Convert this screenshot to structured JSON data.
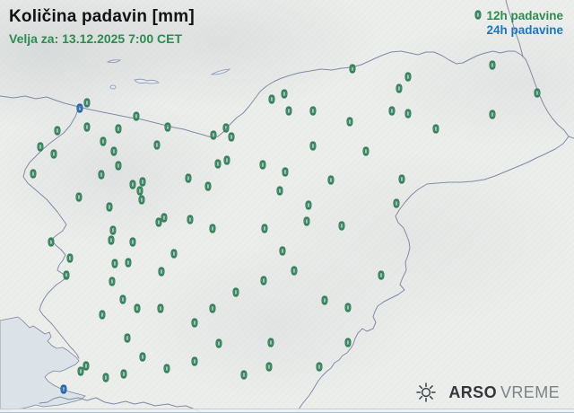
{
  "header": {
    "title": "Količina padavin [mm]",
    "valid": "Velja za: 13.12.2025 7:00 CET"
  },
  "legend": {
    "sample_value": "0",
    "items": [
      {
        "label": "12h padavine",
        "color": "#2e8b50"
      },
      {
        "label": "24h padavine",
        "color": "#1b76c0"
      }
    ]
  },
  "branding": {
    "name_bold": "ARSO",
    "name_regular": "VREME",
    "icon": "sun-icon"
  },
  "map": {
    "region": "Slovenija",
    "station_value": "0",
    "colors": {
      "marker_12h": "#2f7d58",
      "marker_24h": "#1f5fa6",
      "legend_12h": "#2e8b50",
      "legend_24h": "#1b76c0",
      "land": "#eceeec",
      "sea": "#dbe3e8",
      "border": "#7b86a0"
    },
    "stations_12h": [
      [
        97,
        115
      ],
      [
        152,
        130
      ],
      [
        187,
        142
      ],
      [
        64,
        146
      ],
      [
        97,
        142
      ],
      [
        132,
        144
      ],
      [
        115,
        158
      ],
      [
        45,
        164
      ],
      [
        127,
        169
      ],
      [
        60,
        172
      ],
      [
        238,
        151
      ],
      [
        252,
        143
      ],
      [
        258,
        153
      ],
      [
        303,
        111
      ],
      [
        317,
        105
      ],
      [
        322,
        124
      ],
      [
        175,
        162
      ],
      [
        37,
        194
      ],
      [
        113,
        195
      ],
      [
        132,
        185
      ],
      [
        210,
        199
      ],
      [
        243,
        183
      ],
      [
        253,
        179
      ],
      [
        293,
        184
      ],
      [
        318,
        192
      ],
      [
        312,
        213
      ],
      [
        232,
        208
      ],
      [
        148,
        206
      ],
      [
        159,
        203
      ],
      [
        156,
        213
      ],
      [
        158,
        223
      ],
      [
        88,
        220
      ],
      [
        122,
        231
      ],
      [
        177,
        248
      ],
      [
        183,
        243
      ],
      [
        212,
        245
      ],
      [
        126,
        257
      ],
      [
        237,
        255
      ],
      [
        295,
        255
      ],
      [
        393,
        77
      ],
      [
        549,
        73
      ],
      [
        455,
        86
      ],
      [
        445,
        99
      ],
      [
        599,
        104
      ],
      [
        349,
        124
      ],
      [
        437,
        124
      ],
      [
        455,
        127
      ],
      [
        549,
        128
      ],
      [
        390,
        136
      ],
      [
        486,
        144
      ],
      [
        349,
        163
      ],
      [
        408,
        169
      ],
      [
        369,
        201
      ],
      [
        448,
        200
      ],
      [
        442,
        227
      ],
      [
        344,
        229
      ],
      [
        342,
        247
      ],
      [
        381,
        252
      ],
      [
        57,
        270
      ],
      [
        124,
        268
      ],
      [
        148,
        270
      ],
      [
        78,
        288
      ],
      [
        194,
        283
      ],
      [
        128,
        294
      ],
      [
        143,
        293
      ],
      [
        74,
        307
      ],
      [
        180,
        303
      ],
      [
        315,
        280
      ],
      [
        294,
        313
      ],
      [
        263,
        326
      ],
      [
        125,
        314
      ],
      [
        137,
        334
      ],
      [
        114,
        351
      ],
      [
        153,
        344
      ],
      [
        179,
        344
      ],
      [
        237,
        344
      ],
      [
        217,
        360
      ],
      [
        142,
        377
      ],
      [
        244,
        383
      ],
      [
        302,
        382
      ],
      [
        300,
        409
      ],
      [
        159,
        398
      ],
      [
        217,
        403
      ],
      [
        186,
        411
      ],
      [
        96,
        408
      ],
      [
        90,
        414
      ],
      [
        118,
        421
      ],
      [
        138,
        417
      ],
      [
        272,
        418
      ],
      [
        328,
        302
      ],
      [
        425,
        307
      ],
      [
        362,
        335
      ],
      [
        388,
        343
      ],
      [
        388,
        382
      ],
      [
        356,
        409
      ]
    ],
    "stations_24h": [
      [
        89,
        121
      ],
      [
        71,
        434
      ]
    ]
  }
}
